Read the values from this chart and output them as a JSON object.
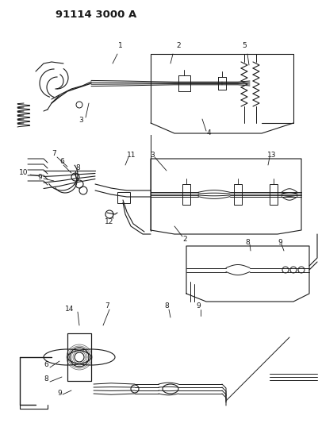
{
  "title": "91114 3000 A",
  "bg_color": "#ffffff",
  "line_color": "#1a1a1a",
  "fig_width": 4.01,
  "fig_height": 5.33,
  "dpi": 100
}
